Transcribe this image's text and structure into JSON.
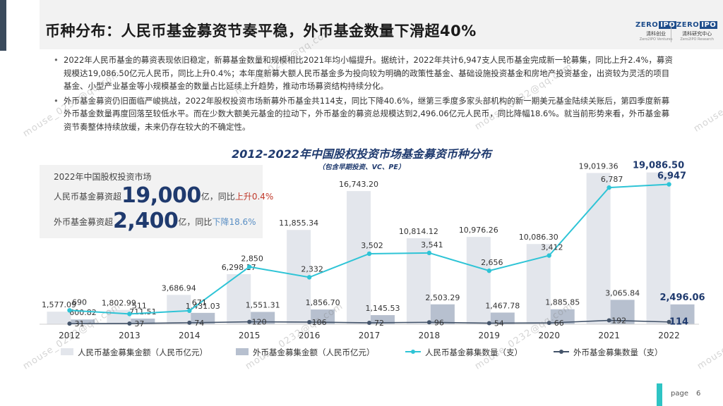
{
  "header": {
    "title": "币种分布：人民币基金募资节奏平稳，外币基金数量下滑超40%",
    "logo_left": {
      "brand": "ZERO",
      "ipo": "IPO",
      "cn": "清科创业",
      "en": "Zero2IPO Ventures"
    },
    "logo_right": {
      "brand": "ZERO",
      "ipo": "IPO",
      "cn": "清科研究中心",
      "en": "Zero2IPO Research"
    }
  },
  "bullets": [
    "2022年人民币基金的募资表现依旧稳定，新募基金数量和规模相比2021年均小幅提升。据统计，2022年共计6,947支人民币基金完成新一轮募集，同比上升2.4%，募资规模达19,086.50亿元人民币，同比上升0.4%；本年度新募大额人民币基金多为投向较为明确的政策性基金、基础设施投资基金和房地产投资基金，出资较为灵活的项目基金、小型产业基金等小规模基金的数量占比延续上升趋势，推动市场募资结构持续分化。",
    "外币基金募资仍旧面临严峻挑战，2022年股权投资市场新募外币基金共114支，同比下降40.6%，继第三季度多家头部机构的新一期美元基金陆续关账后，第四季度新募外币基金数量再度回落至较低水平。而在少数大额美元基金的拉动下，外币基金的募资总规模达到2,496.06亿元人民币，同比降幅18.6%。就当前形势来看，外币基金募资节奏整体持续放缓，未来仍存在较大的不确定性。"
  ],
  "summary": {
    "heading": "2022年中国股权投资市场",
    "rmb_prefix": "人民币基金募资超",
    "rmb_big": "19,000",
    "rmb_unit": "亿，同比",
    "rmb_change": "上升0.4%",
    "fx_prefix": "外币基金募资超",
    "fx_big": "2,400",
    "fx_unit": "亿，同比",
    "fx_change": "下降18.6%"
  },
  "chart_data": {
    "type": "bar",
    "title": "2012-2022年中国股权投资市场基金募资币种分布",
    "subtitle": "（包含早期投资、VC、PE）",
    "categories": [
      "2012",
      "2013",
      "2014",
      "2015",
      "2016",
      "2017",
      "2018",
      "2019",
      "2020",
      "2021",
      "2022"
    ],
    "series": [
      {
        "name": "人民币基金募集金额（人民币亿元）",
        "kind": "bar",
        "axis": "amount",
        "values": [
          1577.09,
          1802.99,
          3686.94,
          6298.17,
          11855.34,
          16743.2,
          10814.12,
          10976.26,
          10086.3,
          19019.36,
          19086.5
        ],
        "labels": [
          "1,577.09",
          "1,802.99",
          "3,686.94",
          "6,298.17",
          "11,855.34",
          "16,743.20",
          "10,814.12",
          "10,976.26",
          "10,086.30",
          "19,019.36",
          "19,086.50"
        ]
      },
      {
        "name": "外币基金募集金额（人民币亿元）",
        "kind": "bar",
        "axis": "amount",
        "values": [
          600.82,
          711.51,
          1431.03,
          1551.31,
          1856.7,
          1145.53,
          2503.29,
          1467.78,
          1885.85,
          3065.84,
          2496.06
        ],
        "labels": [
          "600.82",
          "711.51",
          "1,431.03",
          "1,551.31",
          "1,856.70",
          "1,145.53",
          "2,503.29",
          "1,467.78",
          "1,885.85",
          "3,065.84",
          "2,496.06"
        ]
      },
      {
        "name": "人民币基金募集数量（支）",
        "kind": "line",
        "axis": "count",
        "values": [
          690,
          511,
          671,
          2850,
          2332,
          3502,
          3541,
          2656,
          3412,
          6787,
          6947
        ],
        "labels": [
          "690",
          "511",
          "671",
          "2,850",
          "2,332",
          "3,502",
          "3,541",
          "2,656",
          "3,412",
          "6,787",
          "6,947"
        ]
      },
      {
        "name": "外币基金募集数量（支）",
        "kind": "line",
        "axis": "count",
        "values": [
          31,
          37,
          74,
          120,
          106,
          72,
          96,
          54,
          66,
          192,
          114
        ],
        "labels": [
          "31",
          "37",
          "74",
          "120",
          "106",
          "72",
          "96",
          "54",
          "66",
          "192",
          "114"
        ]
      }
    ],
    "amount_range": [
      0,
      19500
    ],
    "count_range": [
      0,
      7700
    ],
    "colors": {
      "rmb_bar": "#e3e6ec",
      "fx_bar": "#b7c0cf",
      "rmb_line": "#2ec4d6",
      "fx_line": "#44546a"
    },
    "legend_position": "bottom",
    "grid": false
  },
  "watermarks": [
    "mouse_0232@qq.com"
  ],
  "footer": {
    "page_label": "page",
    "page_number": "6"
  }
}
